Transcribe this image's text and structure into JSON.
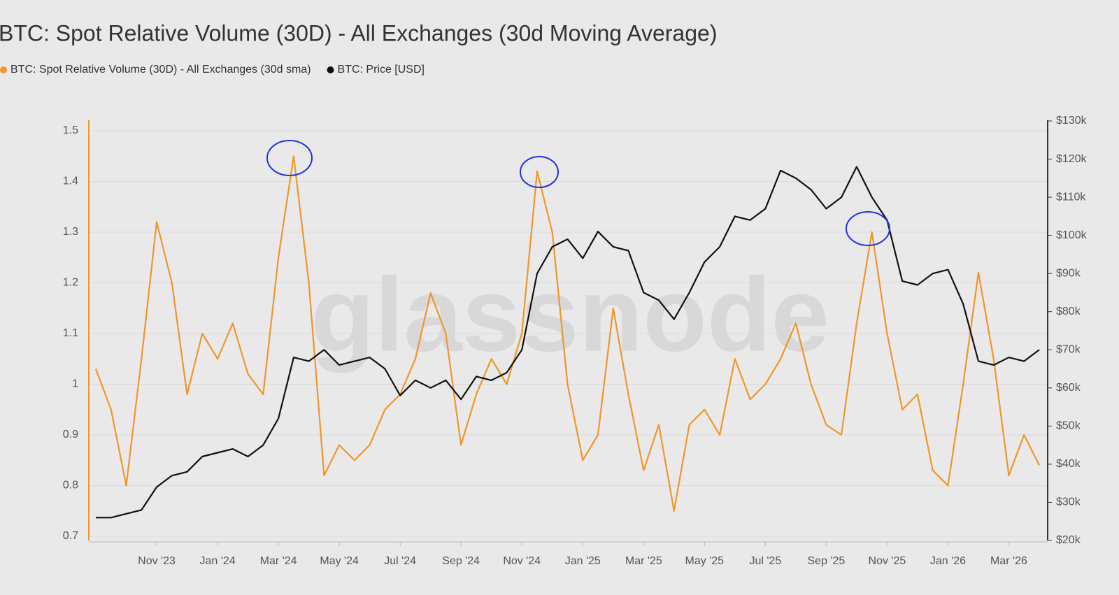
{
  "chart_data": {
    "type": "line",
    "title": "BTC: Spot Relative Volume (30D) - All Exchanges (30d Moving Average)",
    "watermark": "glassnode",
    "categories": [
      null,
      null,
      null,
      null,
      "Nov '23",
      null,
      null,
      null,
      "Jan '24",
      null,
      null,
      null,
      "Mar '24",
      null,
      null,
      null,
      "May '24",
      null,
      null,
      null,
      "Jul '24",
      null,
      null,
      null,
      "Sep '24",
      null,
      null,
      null,
      "Nov '24",
      null,
      null,
      null,
      "Jan '25",
      null,
      null,
      null,
      "Mar '25",
      null,
      null,
      null,
      "May '25",
      null,
      null,
      null,
      "Jul '25",
      null,
      null,
      null,
      "Sep '25",
      null,
      null,
      null,
      "Nov '25",
      null,
      null,
      null,
      "Jan '26",
      null,
      null,
      null,
      "Mar '26",
      null,
      null
    ],
    "series": [
      {
        "name": "BTC: Spot Relative Volume (30D) - All Exchanges (30d sma)",
        "color": "#f0962a",
        "values": [
          1.03,
          0.95,
          0.8,
          1.05,
          1.32,
          1.2,
          0.98,
          1.1,
          1.05,
          1.12,
          1.02,
          0.98,
          1.25,
          1.45,
          1.2,
          0.82,
          0.88,
          0.85,
          0.88,
          0.95,
          0.98,
          1.05,
          1.18,
          1.1,
          0.88,
          0.98,
          1.05,
          1.0,
          1.1,
          1.42,
          1.3,
          1.0,
          0.85,
          0.9,
          1.15,
          0.98,
          0.83,
          0.92,
          0.75,
          0.92,
          0.95,
          0.9,
          1.05,
          0.97,
          1.0,
          1.05,
          1.12,
          1.0,
          0.92,
          0.9,
          1.12,
          1.3,
          1.1,
          0.95,
          0.98,
          0.83,
          0.8,
          1.0,
          1.22,
          1.05,
          0.82,
          0.9,
          0.84
        ]
      },
      {
        "name": "BTC: Price [USD]",
        "color": "#111111",
        "axis": "y2",
        "values": [
          26000,
          26000,
          27000,
          28000,
          34000,
          37000,
          38000,
          42000,
          43000,
          44000,
          42000,
          45000,
          52000,
          68000,
          67000,
          70000,
          66000,
          67000,
          68000,
          65000,
          58000,
          62000,
          60000,
          62000,
          57000,
          63000,
          62000,
          64000,
          70000,
          90000,
          97000,
          99000,
          94000,
          101000,
          97000,
          96000,
          85000,
          83000,
          78000,
          85000,
          93000,
          97000,
          105000,
          104000,
          107000,
          117000,
          115000,
          112000,
          107000,
          110000,
          118000,
          110000,
          104000,
          88000,
          87000,
          90000,
          91000,
          82000,
          67000,
          66000,
          68000,
          67000,
          70000
        ]
      }
    ],
    "ylim": [
      0.7,
      1.5
    ],
    "yticks": [
      0.7,
      0.8,
      0.9,
      1,
      1.1,
      1.2,
      1.3,
      1.4,
      1.5
    ],
    "y2lim": [
      20000,
      130000
    ],
    "y2ticks": [
      {
        "value": 20000,
        "label": "$20k"
      },
      {
        "value": 30000,
        "label": "$30k"
      },
      {
        "value": 40000,
        "label": "$40k"
      },
      {
        "value": 50000,
        "label": "$50k"
      },
      {
        "value": 60000,
        "label": "$60k"
      },
      {
        "value": 70000,
        "label": "$70k"
      },
      {
        "value": 80000,
        "label": "$80k"
      },
      {
        "value": 90000,
        "label": "$90k"
      },
      {
        "value": 100000,
        "label": "$100k"
      },
      {
        "value": 110000,
        "label": "$110k"
      },
      {
        "value": 120000,
        "label": "$120k"
      },
      {
        "value": 130000,
        "label": "$130k"
      }
    ],
    "grid": true
  }
}
